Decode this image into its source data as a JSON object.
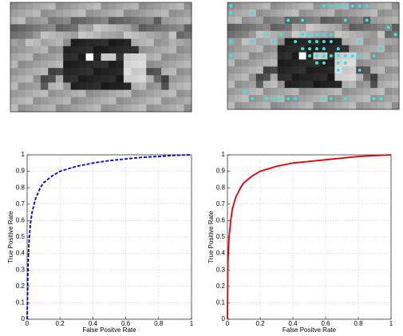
{
  "chart_data": [
    {
      "type": "line",
      "xlabel": "False Positve Rate",
      "ylabel": "True Positive Rate",
      "x": [
        0,
        0.005,
        0.01,
        0.02,
        0.03,
        0.05,
        0.08,
        0.1,
        0.15,
        0.2,
        0.3,
        0.4,
        0.5,
        0.6,
        0.7,
        0.8,
        0.9,
        1
      ],
      "series": [
        {
          "color": "#0000cc",
          "line_style": "dashed",
          "values": [
            0,
            0.3,
            0.45,
            0.58,
            0.65,
            0.73,
            0.8,
            0.83,
            0.87,
            0.9,
            0.93,
            0.95,
            0.965,
            0.975,
            0.985,
            0.99,
            0.997,
            1
          ]
        }
      ],
      "xlim": [
        0,
        1
      ],
      "ylim": [
        0,
        1
      ],
      "xticks": [
        0,
        0.2,
        0.4,
        0.6,
        0.8,
        1
      ],
      "yticks": [
        0,
        0.1,
        0.2,
        0.3,
        0.4,
        0.5,
        0.6,
        0.7,
        0.8,
        0.9,
        1
      ],
      "grid": true
    },
    {
      "type": "line",
      "xlabel": "False Positve Rate",
      "ylabel": "True Positive Rate",
      "x": [
        0,
        0.003,
        0.01,
        0.02,
        0.03,
        0.05,
        0.08,
        0.1,
        0.15,
        0.2,
        0.3,
        0.4,
        0.5,
        0.6,
        0.7,
        0.8,
        0.9,
        1
      ],
      "series": [
        {
          "color": "#dd0000",
          "line_style": "solid",
          "values": [
            0,
            0.35,
            0.5,
            0.6,
            0.67,
            0.74,
            0.8,
            0.83,
            0.87,
            0.9,
            0.93,
            0.95,
            0.96,
            0.97,
            0.98,
            0.99,
            0.995,
            1
          ]
        }
      ],
      "xlim": [
        0,
        1
      ],
      "ylim": [
        0,
        1
      ],
      "xticks": [
        0,
        0.2,
        0.4,
        0.6,
        0.8,
        1
      ],
      "yticks": [
        0,
        0.1,
        0.2,
        0.3,
        0.4,
        0.5,
        0.6,
        0.7,
        0.8,
        0.9,
        1
      ],
      "grid": true
    }
  ]
}
